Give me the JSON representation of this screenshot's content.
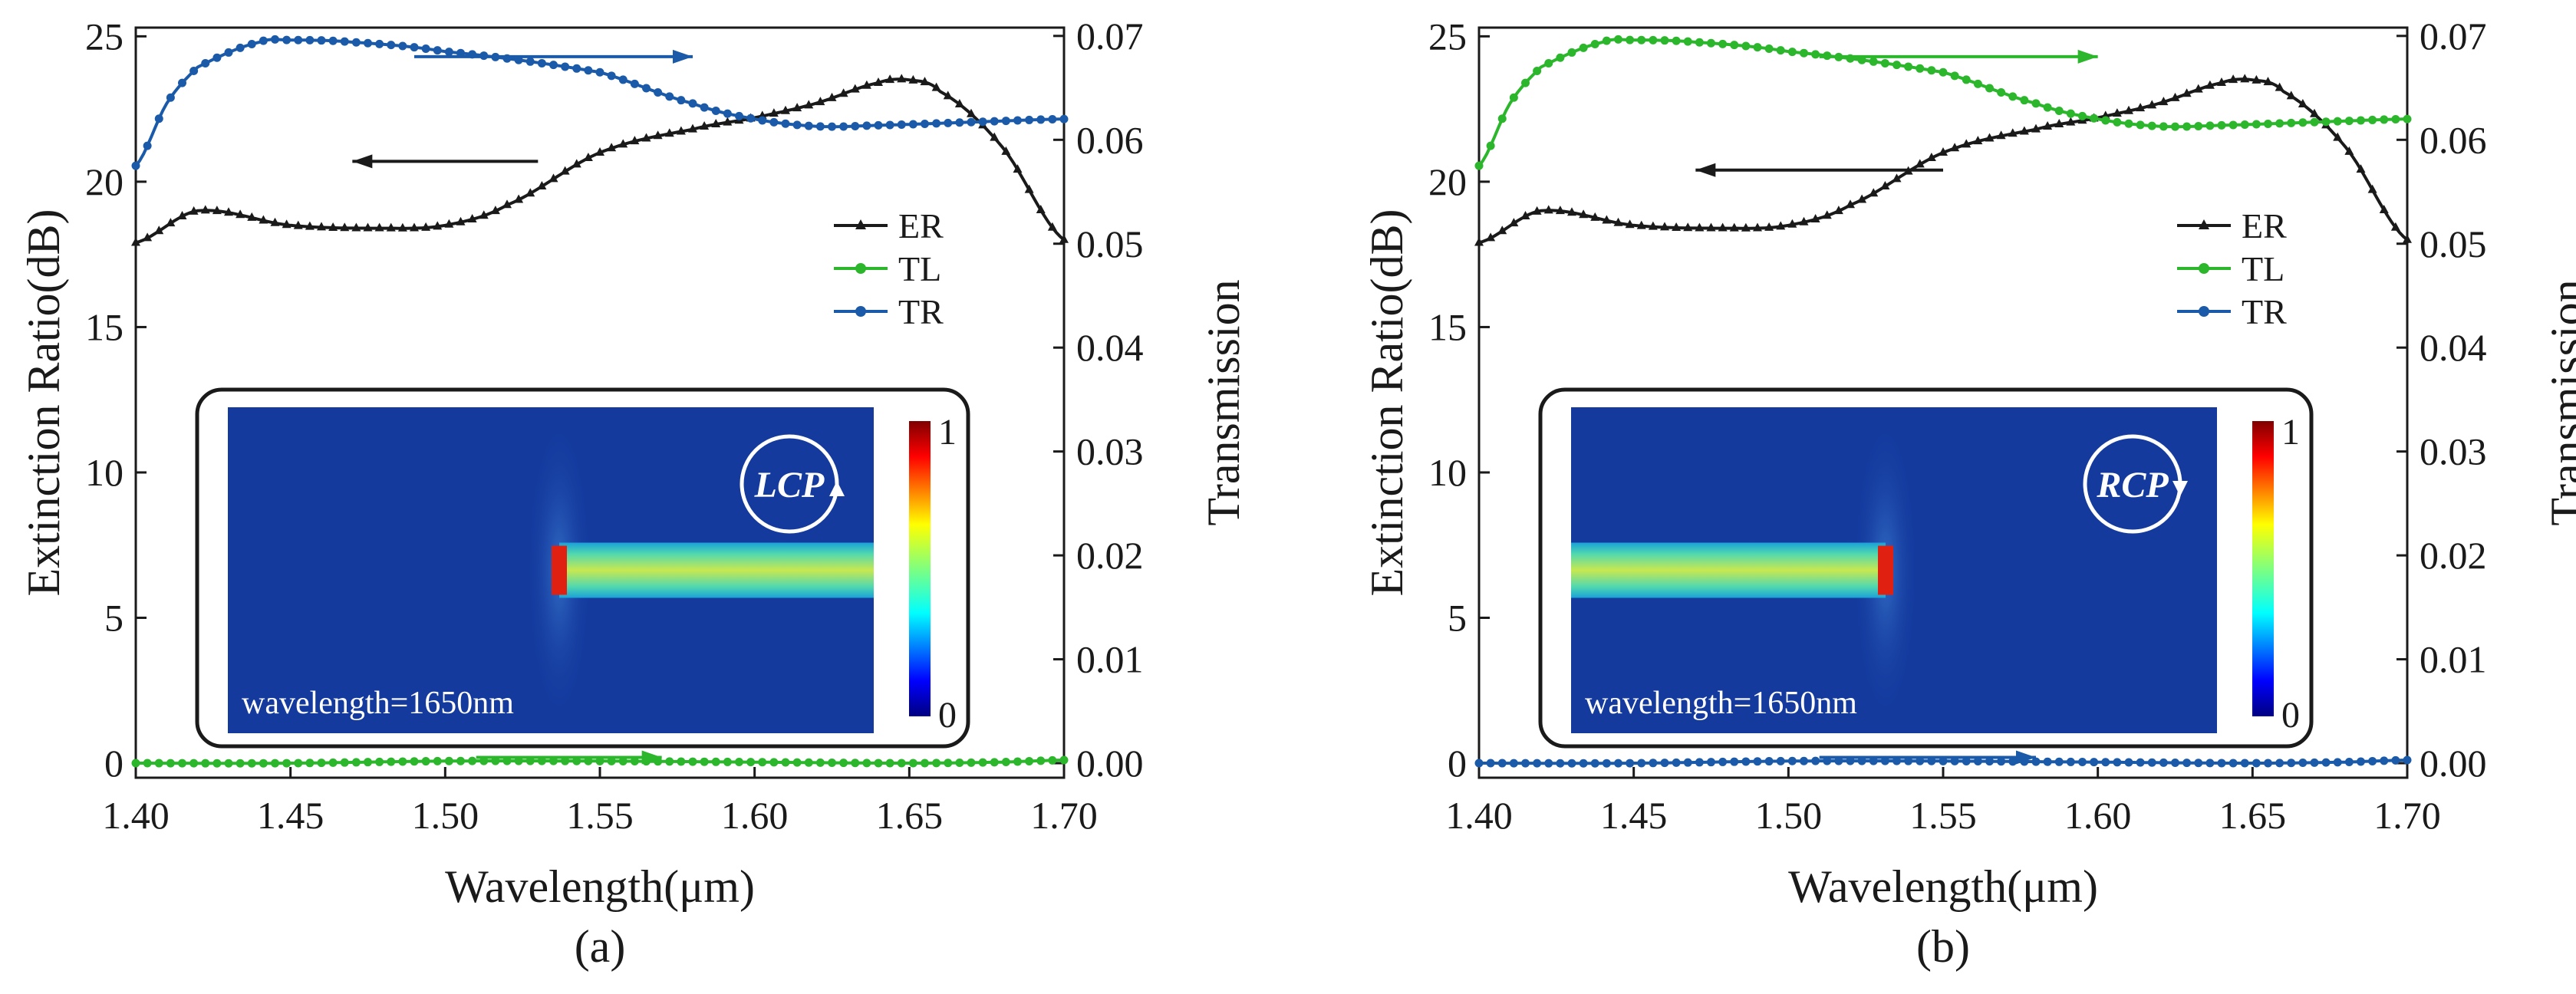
{
  "chart_data": [
    {
      "type": "line",
      "panel_label": "(a)",
      "xlabel": "Wavelength(μm)",
      "ylabel": "Extinction Ratio(dB)",
      "y2label": "Transmission",
      "xlim": [
        1.4,
        1.7
      ],
      "ylim": [
        -0.5,
        25.3
      ],
      "y2lim": [
        -0.0014,
        0.0708
      ],
      "xticks": [
        "1.40",
        "1.45",
        "1.50",
        "1.55",
        "1.60",
        "1.65",
        "1.70"
      ],
      "yticks": [
        "0",
        "5",
        "10",
        "15",
        "20",
        "25"
      ],
      "y2ticks": [
        "0.00",
        "0.01",
        "0.02",
        "0.03",
        "0.04",
        "0.05",
        "0.06",
        "0.07"
      ],
      "legend": {
        "position": "right-middle",
        "entries": [
          "ER",
          "TL",
          "TR"
        ]
      },
      "series": [
        {
          "name": "ER",
          "axis": "left",
          "color": "#1a1a1a",
          "marker": "triangle",
          "x": [
            1.4,
            1.42,
            1.45,
            1.48,
            1.5,
            1.52,
            1.55,
            1.58,
            1.6,
            1.62,
            1.64,
            1.65,
            1.66,
            1.68,
            1.7
          ],
          "values": [
            17.9,
            19.0,
            18.5,
            18.4,
            18.5,
            19.2,
            21.0,
            21.8,
            22.2,
            22.7,
            23.4,
            23.5,
            23.1,
            21.2,
            18.0
          ]
        },
        {
          "name": "TL",
          "axis": "right",
          "color": "#2bb62b",
          "marker": "circle",
          "x": [
            1.4,
            1.45,
            1.5,
            1.55,
            1.6,
            1.65,
            1.68,
            1.7
          ],
          "values": [
            0.0,
            0.0,
            0.0002,
            0.0002,
            0.0001,
            0.0,
            0.0001,
            0.0003
          ]
        },
        {
          "name": "TR",
          "axis": "right",
          "color": "#1a5aa8",
          "marker": "circle",
          "x": [
            1.4,
            1.41,
            1.42,
            1.44,
            1.45,
            1.47,
            1.5,
            1.55,
            1.58,
            1.6,
            1.62,
            1.64,
            1.67,
            1.7
          ],
          "values": [
            0.0575,
            0.0635,
            0.067,
            0.0694,
            0.0696,
            0.0694,
            0.0685,
            0.0665,
            0.0635,
            0.062,
            0.0613,
            0.0614,
            0.0617,
            0.062
          ]
        }
      ],
      "arrows": [
        {
          "direction": "right",
          "color": "#1a5aa8",
          "from": [
            1.49,
            24.3
          ],
          "to": [
            1.58,
            24.3
          ]
        },
        {
          "direction": "left",
          "color": "#1a1a1a",
          "from": [
            1.53,
            20.7
          ],
          "to": [
            1.47,
            20.7
          ]
        },
        {
          "direction": "right",
          "color": "#2bb62b",
          "from": [
            1.51,
            0.2
          ],
          "to": [
            1.57,
            0.2
          ]
        }
      ],
      "inset": {
        "wavelength_text": "wavelength=1650nm",
        "polarization": "LCP",
        "colorbar_max": "1",
        "colorbar_min": "0",
        "mode_side": "right"
      }
    },
    {
      "type": "line",
      "panel_label": "(b)",
      "xlabel": "Wavelength(μm)",
      "ylabel": "Extinction Ratio(dB)",
      "y2label": "Transmission",
      "xlim": [
        1.4,
        1.7
      ],
      "ylim": [
        -0.5,
        25.3
      ],
      "y2lim": [
        -0.0014,
        0.0708
      ],
      "xticks": [
        "1.40",
        "1.45",
        "1.50",
        "1.55",
        "1.60",
        "1.65",
        "1.70"
      ],
      "yticks": [
        "0",
        "5",
        "10",
        "15",
        "20",
        "25"
      ],
      "y2ticks": [
        "0.00",
        "0.01",
        "0.02",
        "0.03",
        "0.04",
        "0.05",
        "0.06",
        "0.07"
      ],
      "legend": {
        "position": "right-middle",
        "entries": [
          "ER",
          "TL",
          "TR"
        ]
      },
      "series": [
        {
          "name": "ER",
          "axis": "left",
          "color": "#1a1a1a",
          "marker": "triangle",
          "x": [
            1.4,
            1.42,
            1.45,
            1.48,
            1.5,
            1.52,
            1.55,
            1.58,
            1.6,
            1.62,
            1.64,
            1.65,
            1.66,
            1.68,
            1.7
          ],
          "values": [
            17.9,
            19.0,
            18.5,
            18.4,
            18.5,
            19.2,
            21.0,
            21.8,
            22.2,
            22.7,
            23.4,
            23.5,
            23.1,
            21.2,
            18.0
          ]
        },
        {
          "name": "TL",
          "axis": "right",
          "color": "#2bb62b",
          "marker": "circle",
          "x": [
            1.4,
            1.41,
            1.42,
            1.44,
            1.45,
            1.47,
            1.5,
            1.55,
            1.58,
            1.6,
            1.62,
            1.64,
            1.67,
            1.7
          ],
          "values": [
            0.0575,
            0.0635,
            0.067,
            0.0694,
            0.0696,
            0.0694,
            0.0685,
            0.0665,
            0.0635,
            0.062,
            0.0613,
            0.0614,
            0.0617,
            0.062
          ]
        },
        {
          "name": "TR",
          "axis": "right",
          "color": "#1a5aa8",
          "marker": "circle",
          "x": [
            1.4,
            1.45,
            1.5,
            1.55,
            1.6,
            1.65,
            1.68,
            1.7
          ],
          "values": [
            0.0,
            0.0,
            0.0002,
            0.0002,
            0.0001,
            0.0,
            0.0001,
            0.0003
          ]
        }
      ],
      "arrows": [
        {
          "direction": "right",
          "color": "#2bb62b",
          "from": [
            1.51,
            24.3
          ],
          "to": [
            1.6,
            24.3
          ]
        },
        {
          "direction": "left",
          "color": "#1a1a1a",
          "from": [
            1.55,
            20.4
          ],
          "to": [
            1.47,
            20.4
          ]
        },
        {
          "direction": "right",
          "color": "#1a5aa8",
          "from": [
            1.51,
            0.2
          ],
          "to": [
            1.58,
            0.2
          ]
        }
      ],
      "inset": {
        "wavelength_text": "wavelength=1650nm",
        "polarization": "RCP",
        "colorbar_max": "1",
        "colorbar_min": "0",
        "mode_side": "left"
      }
    }
  ]
}
